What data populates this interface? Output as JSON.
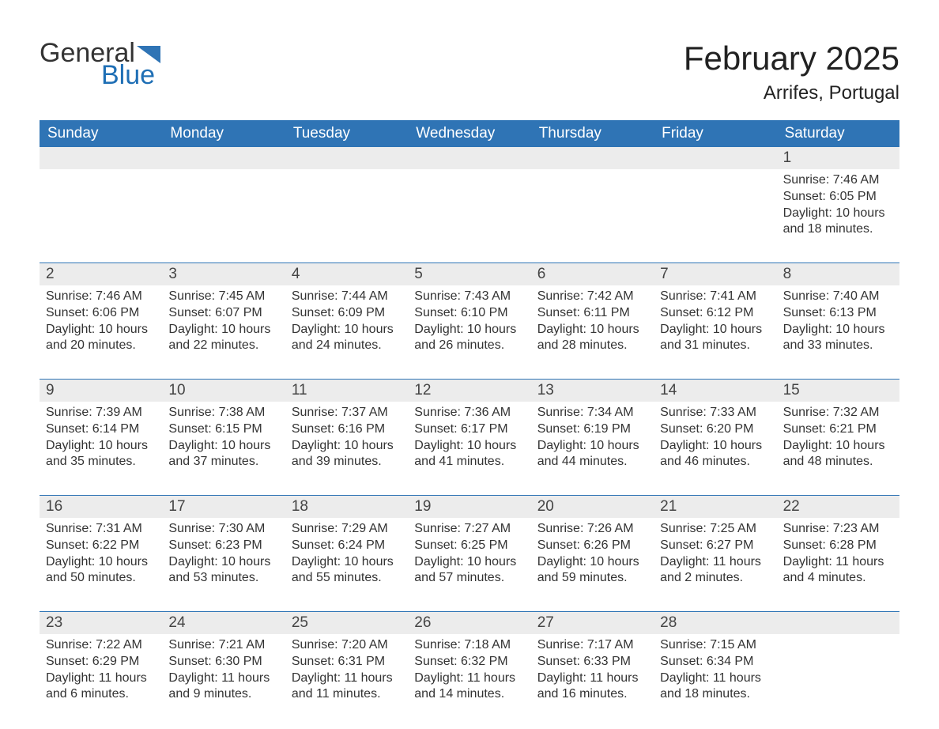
{
  "logo": {
    "general": "General",
    "blue": "Blue",
    "flag_color": "#2f74b5"
  },
  "title": "February 2025",
  "location": "Arrifes, Portugal",
  "colors": {
    "header_bg": "#2f74b5",
    "header_text": "#ffffff",
    "daynum_bg": "#ececec",
    "rule": "#2f74b5",
    "text": "#333333",
    "page_bg": "#ffffff"
  },
  "weekdays": [
    "Sunday",
    "Monday",
    "Tuesday",
    "Wednesday",
    "Thursday",
    "Friday",
    "Saturday"
  ],
  "weeks": [
    [
      {
        "day": "",
        "sunrise": "",
        "sunset": "",
        "daylight": ""
      },
      {
        "day": "",
        "sunrise": "",
        "sunset": "",
        "daylight": ""
      },
      {
        "day": "",
        "sunrise": "",
        "sunset": "",
        "daylight": ""
      },
      {
        "day": "",
        "sunrise": "",
        "sunset": "",
        "daylight": ""
      },
      {
        "day": "",
        "sunrise": "",
        "sunset": "",
        "daylight": ""
      },
      {
        "day": "",
        "sunrise": "",
        "sunset": "",
        "daylight": ""
      },
      {
        "day": "1",
        "sunrise": "Sunrise: 7:46 AM",
        "sunset": "Sunset: 6:05 PM",
        "daylight": "Daylight: 10 hours and 18 minutes."
      }
    ],
    [
      {
        "day": "2",
        "sunrise": "Sunrise: 7:46 AM",
        "sunset": "Sunset: 6:06 PM",
        "daylight": "Daylight: 10 hours and 20 minutes."
      },
      {
        "day": "3",
        "sunrise": "Sunrise: 7:45 AM",
        "sunset": "Sunset: 6:07 PM",
        "daylight": "Daylight: 10 hours and 22 minutes."
      },
      {
        "day": "4",
        "sunrise": "Sunrise: 7:44 AM",
        "sunset": "Sunset: 6:09 PM",
        "daylight": "Daylight: 10 hours and 24 minutes."
      },
      {
        "day": "5",
        "sunrise": "Sunrise: 7:43 AM",
        "sunset": "Sunset: 6:10 PM",
        "daylight": "Daylight: 10 hours and 26 minutes."
      },
      {
        "day": "6",
        "sunrise": "Sunrise: 7:42 AM",
        "sunset": "Sunset: 6:11 PM",
        "daylight": "Daylight: 10 hours and 28 minutes."
      },
      {
        "day": "7",
        "sunrise": "Sunrise: 7:41 AM",
        "sunset": "Sunset: 6:12 PM",
        "daylight": "Daylight: 10 hours and 31 minutes."
      },
      {
        "day": "8",
        "sunrise": "Sunrise: 7:40 AM",
        "sunset": "Sunset: 6:13 PM",
        "daylight": "Daylight: 10 hours and 33 minutes."
      }
    ],
    [
      {
        "day": "9",
        "sunrise": "Sunrise: 7:39 AM",
        "sunset": "Sunset: 6:14 PM",
        "daylight": "Daylight: 10 hours and 35 minutes."
      },
      {
        "day": "10",
        "sunrise": "Sunrise: 7:38 AM",
        "sunset": "Sunset: 6:15 PM",
        "daylight": "Daylight: 10 hours and 37 minutes."
      },
      {
        "day": "11",
        "sunrise": "Sunrise: 7:37 AM",
        "sunset": "Sunset: 6:16 PM",
        "daylight": "Daylight: 10 hours and 39 minutes."
      },
      {
        "day": "12",
        "sunrise": "Sunrise: 7:36 AM",
        "sunset": "Sunset: 6:17 PM",
        "daylight": "Daylight: 10 hours and 41 minutes."
      },
      {
        "day": "13",
        "sunrise": "Sunrise: 7:34 AM",
        "sunset": "Sunset: 6:19 PM",
        "daylight": "Daylight: 10 hours and 44 minutes."
      },
      {
        "day": "14",
        "sunrise": "Sunrise: 7:33 AM",
        "sunset": "Sunset: 6:20 PM",
        "daylight": "Daylight: 10 hours and 46 minutes."
      },
      {
        "day": "15",
        "sunrise": "Sunrise: 7:32 AM",
        "sunset": "Sunset: 6:21 PM",
        "daylight": "Daylight: 10 hours and 48 minutes."
      }
    ],
    [
      {
        "day": "16",
        "sunrise": "Sunrise: 7:31 AM",
        "sunset": "Sunset: 6:22 PM",
        "daylight": "Daylight: 10 hours and 50 minutes."
      },
      {
        "day": "17",
        "sunrise": "Sunrise: 7:30 AM",
        "sunset": "Sunset: 6:23 PM",
        "daylight": "Daylight: 10 hours and 53 minutes."
      },
      {
        "day": "18",
        "sunrise": "Sunrise: 7:29 AM",
        "sunset": "Sunset: 6:24 PM",
        "daylight": "Daylight: 10 hours and 55 minutes."
      },
      {
        "day": "19",
        "sunrise": "Sunrise: 7:27 AM",
        "sunset": "Sunset: 6:25 PM",
        "daylight": "Daylight: 10 hours and 57 minutes."
      },
      {
        "day": "20",
        "sunrise": "Sunrise: 7:26 AM",
        "sunset": "Sunset: 6:26 PM",
        "daylight": "Daylight: 10 hours and 59 minutes."
      },
      {
        "day": "21",
        "sunrise": "Sunrise: 7:25 AM",
        "sunset": "Sunset: 6:27 PM",
        "daylight": "Daylight: 11 hours and 2 minutes."
      },
      {
        "day": "22",
        "sunrise": "Sunrise: 7:23 AM",
        "sunset": "Sunset: 6:28 PM",
        "daylight": "Daylight: 11 hours and 4 minutes."
      }
    ],
    [
      {
        "day": "23",
        "sunrise": "Sunrise: 7:22 AM",
        "sunset": "Sunset: 6:29 PM",
        "daylight": "Daylight: 11 hours and 6 minutes."
      },
      {
        "day": "24",
        "sunrise": "Sunrise: 7:21 AM",
        "sunset": "Sunset: 6:30 PM",
        "daylight": "Daylight: 11 hours and 9 minutes."
      },
      {
        "day": "25",
        "sunrise": "Sunrise: 7:20 AM",
        "sunset": "Sunset: 6:31 PM",
        "daylight": "Daylight: 11 hours and 11 minutes."
      },
      {
        "day": "26",
        "sunrise": "Sunrise: 7:18 AM",
        "sunset": "Sunset: 6:32 PM",
        "daylight": "Daylight: 11 hours and 14 minutes."
      },
      {
        "day": "27",
        "sunrise": "Sunrise: 7:17 AM",
        "sunset": "Sunset: 6:33 PM",
        "daylight": "Daylight: 11 hours and 16 minutes."
      },
      {
        "day": "28",
        "sunrise": "Sunrise: 7:15 AM",
        "sunset": "Sunset: 6:34 PM",
        "daylight": "Daylight: 11 hours and 18 minutes."
      },
      {
        "day": "",
        "sunrise": "",
        "sunset": "",
        "daylight": ""
      }
    ]
  ]
}
